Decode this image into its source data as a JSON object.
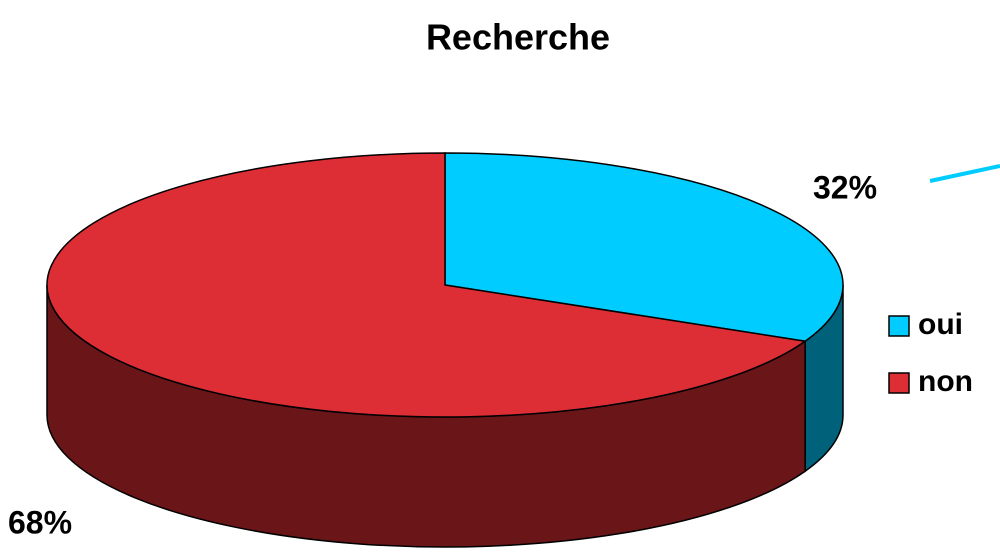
{
  "chart_data": {
    "type": "pie",
    "title": "Recherche",
    "categories": [
      "oui",
      "non"
    ],
    "values": [
      32,
      68
    ],
    "value_labels": [
      "32%",
      "68%"
    ],
    "colors": [
      "#00ccff",
      "#dd2d35"
    ],
    "legend": "right"
  }
}
